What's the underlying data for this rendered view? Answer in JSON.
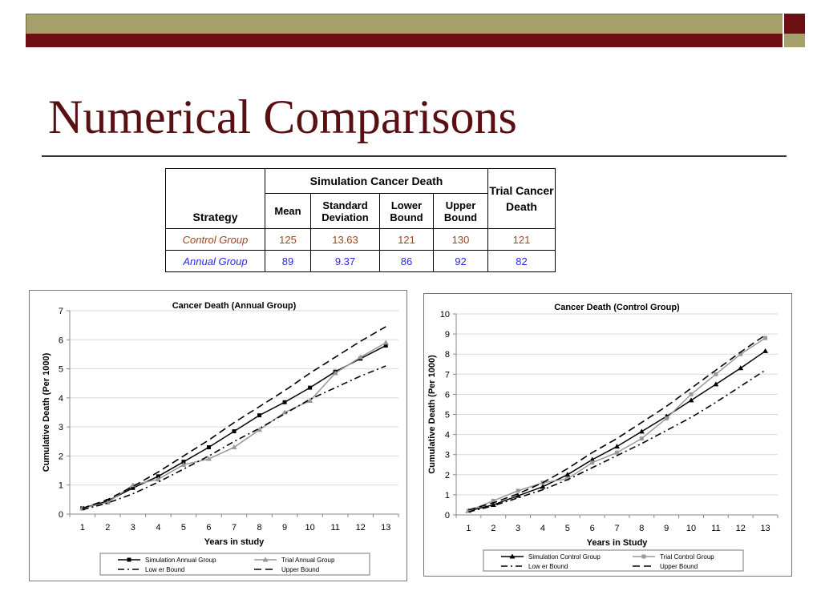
{
  "slide": {
    "title": "Numerical Comparisons"
  },
  "table": {
    "group_header": "Simulation Cancer Death",
    "strategy_header": "Strategy",
    "trial_header": "Trial Cancer Death",
    "sub_headers": [
      "Mean",
      "Standard Deviation",
      "Lower Bound",
      "Upper Bound"
    ],
    "rows": [
      {
        "strategy": "Control Group",
        "mean": "125",
        "sd": "13.63",
        "lower": "121",
        "upper": "130",
        "trial": "121"
      },
      {
        "strategy": "Annual Group",
        "mean": "89",
        "sd": "9.37",
        "lower": "86",
        "upper": "92",
        "trial": "82"
      }
    ],
    "colors": {
      "control": "#a0441b",
      "annual": "#2b2bd6"
    }
  },
  "chart_data": [
    {
      "type": "line",
      "title": "Cancer Death (Annual Group)",
      "xlabel": "Years in study",
      "ylabel": "Cumulative Death (Per 1000)",
      "x": [
        1,
        2,
        3,
        4,
        5,
        6,
        7,
        8,
        9,
        10,
        11,
        12,
        13
      ],
      "ylim": [
        0,
        7
      ],
      "yticks": [
        0,
        1,
        2,
        3,
        4,
        5,
        6,
        7
      ],
      "grid": true,
      "legend_position": "bottom",
      "series": [
        {
          "name": "Simulation Annual Group",
          "values": [
            0.2,
            0.45,
            0.9,
            1.3,
            1.8,
            2.3,
            2.85,
            3.4,
            3.85,
            4.35,
            4.9,
            5.35,
            5.8
          ],
          "color": "#000000",
          "style": "solid",
          "marker": "square"
        },
        {
          "name": "Trial Annual Group",
          "values": [
            0.2,
            0.4,
            1.0,
            1.2,
            1.7,
            1.9,
            2.3,
            2.9,
            3.5,
            3.9,
            4.85,
            5.4,
            5.9
          ],
          "color": "#999999",
          "style": "solid",
          "marker": "triangle"
        },
        {
          "name": "Low er Bound",
          "values": [
            0.15,
            0.38,
            0.7,
            1.1,
            1.55,
            2.0,
            2.5,
            2.95,
            3.45,
            3.95,
            4.35,
            4.75,
            5.1
          ],
          "color": "#000000",
          "style": "dashdot",
          "marker": "none"
        },
        {
          "name": "Upper Bound",
          "values": [
            0.2,
            0.5,
            0.95,
            1.45,
            2.0,
            2.55,
            3.15,
            3.7,
            4.25,
            4.85,
            5.4,
            5.95,
            6.45
          ],
          "color": "#000000",
          "style": "dash",
          "marker": "none"
        }
      ]
    },
    {
      "type": "line",
      "title": "Cancer Death (Control Group)",
      "xlabel": "Years in Study",
      "ylabel": "Cumulative Death (Per 1000)",
      "x": [
        1,
        2,
        3,
        4,
        5,
        6,
        7,
        8,
        9,
        10,
        11,
        12,
        13
      ],
      "ylim": [
        0,
        10
      ],
      "yticks": [
        0,
        1,
        2,
        3,
        4,
        5,
        6,
        7,
        8,
        9,
        10
      ],
      "grid": true,
      "legend_position": "bottom",
      "series": [
        {
          "name": "Simulation Control Group",
          "values": [
            0.2,
            0.5,
            0.95,
            1.4,
            2.0,
            2.75,
            3.4,
            4.15,
            4.9,
            5.7,
            6.5,
            7.3,
            8.15
          ],
          "color": "#000000",
          "style": "solid",
          "marker": "triangle"
        },
        {
          "name": "Trial Control Group",
          "values": [
            0.2,
            0.7,
            1.2,
            1.6,
            1.8,
            2.6,
            3.1,
            3.8,
            4.8,
            6.0,
            7.0,
            8.0,
            8.8
          ],
          "color": "#999999",
          "style": "solid",
          "marker": "square"
        },
        {
          "name": "Low er Bound",
          "values": [
            0.15,
            0.45,
            0.85,
            1.25,
            1.75,
            2.35,
            2.95,
            3.55,
            4.2,
            4.85,
            5.6,
            6.4,
            7.2
          ],
          "color": "#000000",
          "style": "dashdot",
          "marker": "none"
        },
        {
          "name": "Upper Bound",
          "values": [
            0.25,
            0.6,
            1.05,
            1.6,
            2.3,
            3.1,
            3.8,
            4.6,
            5.4,
            6.3,
            7.2,
            8.1,
            8.95
          ],
          "color": "#000000",
          "style": "dash",
          "marker": "none"
        }
      ]
    }
  ]
}
